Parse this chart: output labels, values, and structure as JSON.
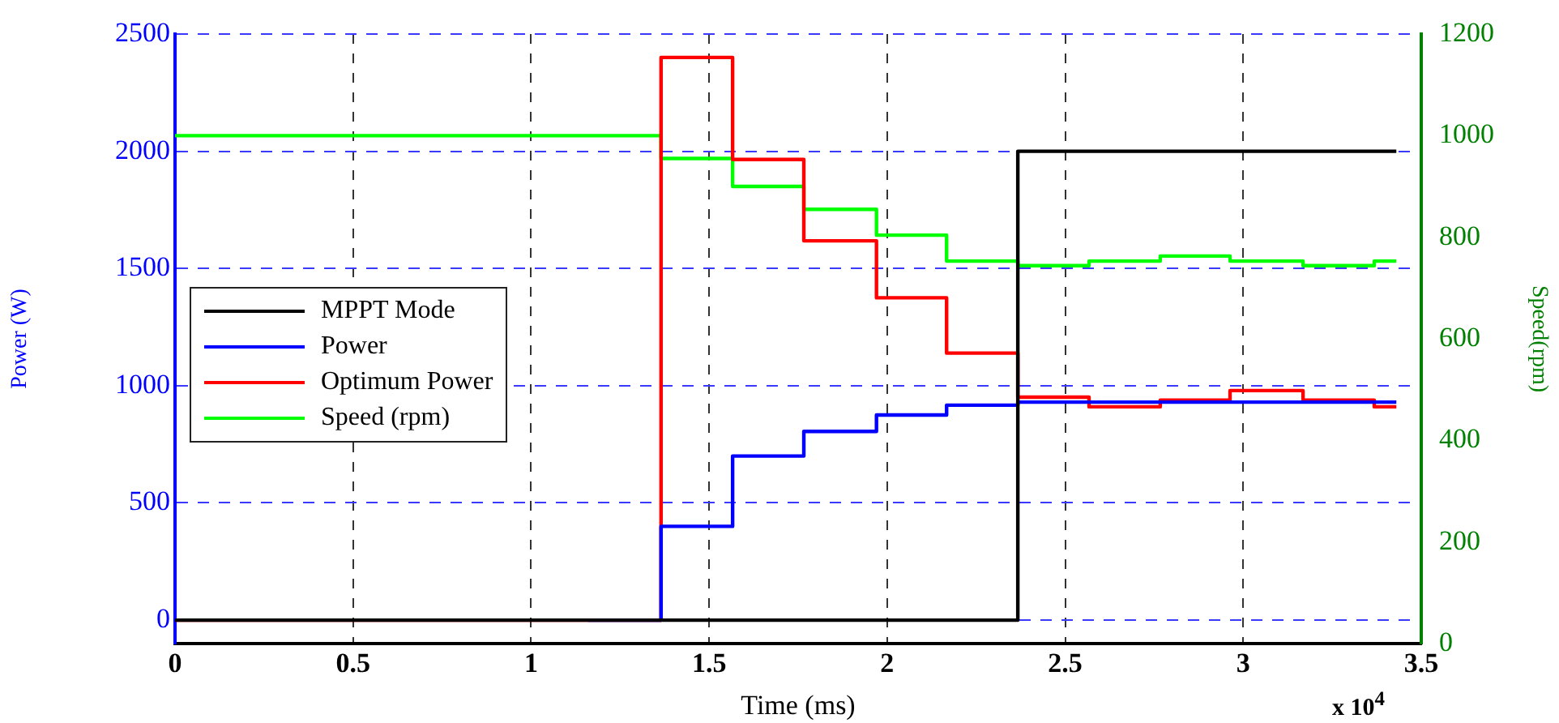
{
  "chart_data": {
    "type": "step",
    "xlabel": "Time (ms)",
    "ylabel": "Power (W)",
    "y2label": "Speed(rpm)",
    "annotations": [
      "x 10$^{4}$"
    ],
    "xlim": [
      0,
      3.5
    ],
    "xticks": [
      0,
      0.5,
      1,
      1.5,
      2,
      2.5,
      3,
      3.5
    ],
    "ylim": [
      -100,
      2500
    ],
    "yticks": [
      0,
      500,
      1000,
      1500,
      2000,
      2500
    ],
    "y2lim": [
      0,
      1200
    ],
    "y2ticks": [
      0,
      200,
      400,
      600,
      800,
      1000,
      1200
    ],
    "grid": true,
    "legend": "left",
    "line_style": "solid",
    "marker": "none",
    "series": [
      {
        "name": "MPPT Mode",
        "color": "#000000",
        "x": [
          0,
          2.367,
          3.43
        ],
        "values": [
          0,
          2000,
          2000
        ]
      },
      {
        "name": "Power",
        "color": "#0000ff",
        "x": [
          1.16,
          1.365,
          1.566,
          1.766,
          1.97,
          2.167,
          2.367,
          3.43
        ],
        "values": [
          0,
          400,
          700,
          805,
          875,
          917,
          930,
          930
        ]
      },
      {
        "name": "Optimum Power",
        "color": "#ff0000",
        "x": [
          0,
          1.365,
          1.566,
          1.766,
          1.97,
          2.167,
          2.367,
          2.567,
          2.767,
          2.963,
          3.168,
          3.368,
          3.43
        ],
        "values": [
          0,
          2400,
          1965,
          1618,
          1375,
          1139,
          951,
          910,
          938,
          979,
          938,
          910,
          910
        ]
      },
      {
        "name": "Speed (rpm)",
        "color": "#00ff00",
        "axis": "y2",
        "x": [
          0,
          1.365,
          1.566,
          1.766,
          1.97,
          2.167,
          2.367,
          2.567,
          2.767,
          2.963,
          3.168,
          3.368,
          3.43
        ],
        "values": [
          1000,
          955,
          900,
          855,
          804,
          753,
          744,
          753,
          763,
          753,
          744,
          753,
          753
        ]
      }
    ]
  }
}
